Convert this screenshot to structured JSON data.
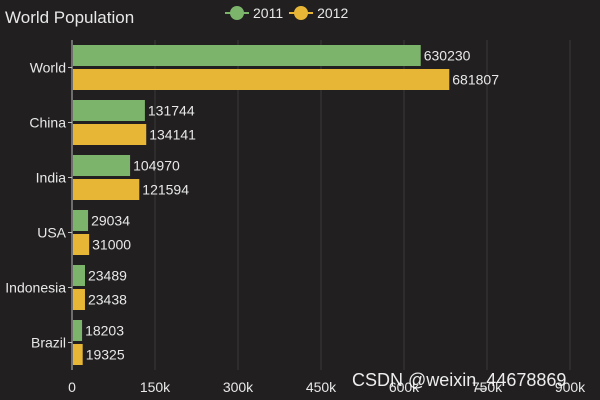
{
  "colors": {
    "background": "#211f20",
    "series_2011": "#7db46c",
    "series_2012": "#e7b637",
    "text": "#e8e8e8",
    "grid": "#3a3839",
    "axis": "#bdbdbd"
  },
  "watermark": "CSDN @weixin_44678869",
  "chart_data": {
    "type": "bar",
    "orientation": "horizontal",
    "title": "World Population",
    "categories": [
      "World",
      "China",
      "India",
      "USA",
      "Indonesia",
      "Brazil"
    ],
    "series": [
      {
        "name": "2011",
        "values": [
          630230,
          131744,
          104970,
          29034,
          23489,
          18203
        ]
      },
      {
        "name": "2012",
        "values": [
          681807,
          134141,
          121594,
          31000,
          23438,
          19325
        ]
      }
    ],
    "xlim": [
      0,
      900000
    ],
    "xticks": [
      {
        "value": 0,
        "label": "0"
      },
      {
        "value": 150000,
        "label": "150k"
      },
      {
        "value": 300000,
        "label": "300k"
      },
      {
        "value": 450000,
        "label": "450k"
      },
      {
        "value": 600000,
        "label": "600k"
      },
      {
        "value": 750000,
        "label": "750k"
      },
      {
        "value": 900000,
        "label": "900k"
      }
    ],
    "grid": true,
    "legend": "top-center",
    "xlabel": "",
    "ylabel": ""
  }
}
